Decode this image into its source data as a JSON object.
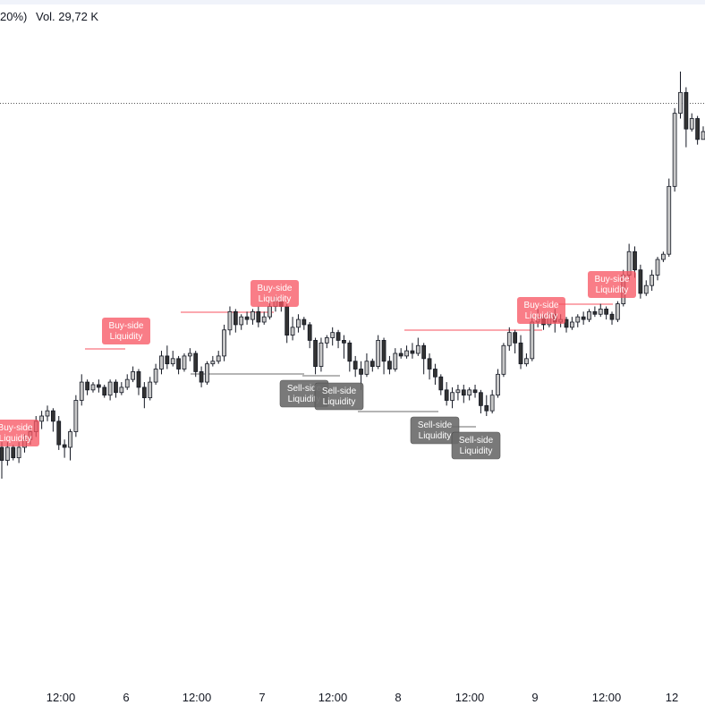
{
  "header": {
    "change_fragment": "20%)",
    "volume": "Vol. 29,72 K"
  },
  "colors": {
    "buy_side": "#f7525f",
    "buy_side_text": "#ffffff",
    "sell_side": "#6b6b6b",
    "sell_side_text": "#ffffff",
    "candle_up_fill": "#c8c8c8",
    "candle_down_fill": "#333333",
    "candle_outline": "#131722",
    "axis_text": "#131722",
    "topbar": "#f0f3fa"
  },
  "chart_data": {
    "type": "candlestick",
    "title": "",
    "xlabel": "",
    "ylabel": "",
    "x_ticks": [
      "12:00",
      "6",
      "12:00",
      "7",
      "12:00",
      "8",
      "12:00",
      "9",
      "12:00",
      "12"
    ],
    "dotted_reference_line": true,
    "grid": false,
    "annotations": [
      {
        "type": "buy-side",
        "label": "Buy-side Liquidity",
        "at": "start",
        "partial": true
      },
      {
        "type": "buy-side",
        "label": "Buy-side Liquidity",
        "at": "6"
      },
      {
        "type": "buy-side",
        "label": "Buy-side Liquidity",
        "at": "6 12:00+"
      },
      {
        "type": "sell-side",
        "label": "Sell-side Liquidity",
        "at": "7 12:00-"
      },
      {
        "type": "sell-side",
        "label": "Sell-side Liquidity",
        "at": "7 12:00"
      },
      {
        "type": "sell-side",
        "label": "Sell-side Liquidity",
        "at": "8 12:00-"
      },
      {
        "type": "sell-side",
        "label": "Sell-side Liquidity",
        "at": "8 12:00"
      },
      {
        "type": "buy-side",
        "label": "Buy-side Liquidity",
        "at": "9"
      },
      {
        "type": "buy-side",
        "label": "Buy-side Liquidity",
        "at": "9 12:00"
      }
    ],
    "candles": [
      [
        100,
        95,
        102,
        88
      ],
      [
        95,
        100,
        102,
        93
      ],
      [
        100,
        96,
        101,
        95
      ],
      [
        96,
        100,
        102,
        94
      ],
      [
        100,
        103,
        105,
        98
      ],
      [
        103,
        106,
        108,
        101
      ],
      [
        106,
        110,
        112,
        104
      ],
      [
        110,
        112,
        114,
        107
      ],
      [
        112,
        114,
        116,
        110
      ],
      [
        114,
        110,
        115,
        106
      ],
      [
        110,
        101,
        112,
        99
      ],
      [
        101,
        100,
        103,
        96
      ],
      [
        100,
        106,
        107,
        95
      ],
      [
        106,
        118,
        120,
        104
      ],
      [
        118,
        125,
        128,
        116
      ],
      [
        125,
        122,
        126,
        120
      ],
      [
        122,
        124,
        125,
        121
      ],
      [
        124,
        123,
        126,
        121
      ],
      [
        123,
        120,
        124,
        119
      ],
      [
        120,
        125,
        126,
        118
      ],
      [
        125,
        121,
        126,
        119
      ],
      [
        121,
        123,
        125,
        120
      ],
      [
        123,
        126,
        128,
        122
      ],
      [
        126,
        129,
        131,
        125
      ],
      [
        129,
        123,
        130,
        120
      ],
      [
        123,
        119,
        125,
        115
      ],
      [
        119,
        125,
        127,
        118
      ],
      [
        125,
        130,
        132,
        124
      ],
      [
        130,
        135,
        137,
        128
      ],
      [
        135,
        132,
        139,
        130
      ],
      [
        132,
        134,
        137,
        131
      ],
      [
        134,
        130,
        135,
        128
      ],
      [
        130,
        135,
        136,
        129
      ],
      [
        135,
        136,
        138,
        133
      ],
      [
        136,
        129,
        137,
        127
      ],
      [
        129,
        125,
        131,
        123
      ],
      [
        125,
        132,
        133,
        124
      ],
      [
        132,
        133,
        135,
        131
      ],
      [
        133,
        135,
        137,
        132
      ],
      [
        135,
        145,
        147,
        133
      ],
      [
        145,
        152,
        154,
        143
      ],
      [
        152,
        147,
        153,
        144
      ],
      [
        147,
        150,
        151,
        145
      ],
      [
        150,
        149,
        152,
        147
      ],
      [
        149,
        152,
        153,
        147
      ],
      [
        152,
        148,
        154,
        146
      ],
      [
        148,
        150,
        152,
        147
      ],
      [
        150,
        154,
        156,
        149
      ],
      [
        154,
        156,
        158,
        152
      ],
      [
        156,
        154,
        158,
        152
      ],
      [
        154,
        143,
        155,
        140
      ],
      [
        143,
        146,
        150,
        141
      ],
      [
        146,
        149,
        151,
        144
      ],
      [
        149,
        147,
        150,
        145
      ],
      [
        147,
        141,
        148,
        138
      ],
      [
        141,
        131,
        142,
        128
      ],
      [
        131,
        140,
        142,
        129
      ],
      [
        140,
        142,
        143,
        138
      ],
      [
        142,
        144,
        146,
        139
      ],
      [
        144,
        141,
        145,
        138
      ],
      [
        141,
        140,
        143,
        134
      ],
      [
        140,
        133,
        141,
        129
      ],
      [
        133,
        130,
        135,
        127
      ],
      [
        130,
        128,
        133,
        122
      ],
      [
        128,
        133,
        136,
        127
      ],
      [
        133,
        131,
        134,
        129
      ],
      [
        131,
        141,
        143,
        130
      ],
      [
        141,
        133,
        142,
        128
      ],
      [
        133,
        130,
        135,
        128
      ],
      [
        130,
        136,
        138,
        129
      ],
      [
        136,
        135,
        138,
        134
      ],
      [
        135,
        137,
        139,
        134
      ],
      [
        137,
        136,
        140,
        134
      ],
      [
        136,
        139,
        142,
        135
      ],
      [
        139,
        134,
        140,
        128
      ],
      [
        134,
        130,
        136,
        126
      ],
      [
        130,
        127,
        132,
        124
      ],
      [
        127,
        122,
        128,
        120
      ],
      [
        122,
        118,
        125,
        116
      ],
      [
        118,
        121,
        123,
        115
      ],
      [
        121,
        122,
        124,
        118
      ],
      [
        122,
        120,
        124,
        117
      ],
      [
        120,
        122,
        123,
        118
      ],
      [
        122,
        121,
        124,
        119
      ],
      [
        121,
        116,
        122,
        113
      ],
      [
        116,
        114,
        120,
        112
      ],
      [
        114,
        120,
        122,
        113
      ],
      [
        120,
        128,
        130,
        119
      ],
      [
        128,
        139,
        140,
        127
      ],
      [
        139,
        144,
        146,
        137
      ],
      [
        144,
        140,
        145,
        136
      ],
      [
        140,
        132,
        143,
        130
      ],
      [
        132,
        134,
        136,
        131
      ],
      [
        134,
        148,
        151,
        133
      ],
      [
        148,
        150,
        153,
        146
      ],
      [
        150,
        147,
        151,
        145
      ],
      [
        147,
        151,
        152,
        146
      ],
      [
        151,
        148,
        153,
        144
      ],
      [
        148,
        149,
        151,
        146
      ],
      [
        149,
        146,
        150,
        144
      ],
      [
        146,
        148,
        150,
        145
      ],
      [
        148,
        150,
        151,
        146
      ],
      [
        150,
        149,
        152,
        147
      ],
      [
        149,
        152,
        153,
        148
      ],
      [
        152,
        151,
        154,
        150
      ],
      [
        151,
        153,
        155,
        150
      ],
      [
        153,
        151,
        154,
        149
      ],
      [
        151,
        149,
        152,
        147
      ],
      [
        149,
        155,
        156,
        148
      ],
      [
        155,
        166,
        168,
        154
      ],
      [
        166,
        175,
        178,
        164
      ],
      [
        175,
        168,
        177,
        165
      ],
      [
        168,
        159,
        170,
        157
      ],
      [
        159,
        162,
        164,
        158
      ],
      [
        162,
        166,
        168,
        160
      ],
      [
        166,
        172,
        173,
        164
      ],
      [
        172,
        174,
        175,
        171
      ],
      [
        174,
        200,
        203,
        173
      ],
      [
        200,
        228,
        230,
        198
      ],
      [
        228,
        236,
        244,
        226
      ],
      [
        236,
        222,
        238,
        215
      ],
      [
        222,
        226,
        228,
        221
      ],
      [
        226,
        218,
        227,
        216
      ],
      [
        218,
        221,
        223,
        219
      ]
    ]
  }
}
